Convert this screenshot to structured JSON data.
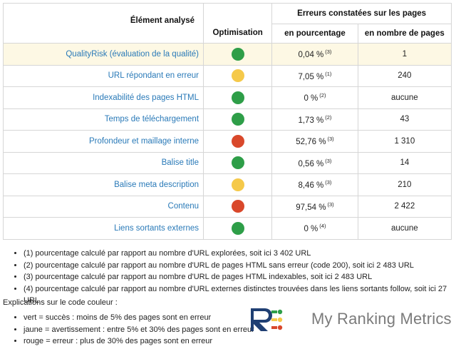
{
  "table": {
    "header_group": "Erreurs constatées sur les pages",
    "col_element": "Élément analysé",
    "col_optimisation": "Optimisation",
    "col_percent": "en pourcentage",
    "col_count": "en nombre de pages",
    "rows": [
      {
        "label": "QualityRisk (évaluation de la qualité)",
        "status": "green",
        "percent": "0,04 %",
        "note": "(3)",
        "count": "1"
      },
      {
        "label": "URL répondant en erreur",
        "status": "yellow",
        "percent": "7,05 %",
        "note": "(1)",
        "count": "240"
      },
      {
        "label": "Indexabilité des pages HTML",
        "status": "green",
        "percent": "0 %",
        "note": "(2)",
        "count": "aucune"
      },
      {
        "label": "Temps de téléchargement",
        "status": "green",
        "percent": "1,73 %",
        "note": "(2)",
        "count": "43"
      },
      {
        "label": "Profondeur et maillage interne",
        "status": "red",
        "percent": "52,76 %",
        "note": "(3)",
        "count": "1 310"
      },
      {
        "label": "Balise title",
        "status": "green",
        "percent": "0,56 %",
        "note": "(3)",
        "count": "14"
      },
      {
        "label": "Balise meta description",
        "status": "yellow",
        "percent": "8,46 %",
        "note": "(3)",
        "count": "210"
      },
      {
        "label": "Contenu",
        "status": "red",
        "percent": "97,54 %",
        "note": "(3)",
        "count": "2 422"
      },
      {
        "label": "Liens sortants externes",
        "status": "green",
        "percent": "0 %",
        "note": "(4)",
        "count": "aucune"
      }
    ]
  },
  "notes": [
    "(1) pourcentage calculé par rapport au nombre d'URL explorées, soit ici 3 402 URL",
    "(2) pourcentage calculé par rapport au nombre d'URL de pages HTML sans erreur (code 200), soit ici 2 483 URL",
    "(3) pourcentage calculé par rapport au nombre d'URL de pages HTML indexables, soit ici 2 483 URL",
    "(4) pourcentage calculé par rapport au nombre d'URL externes distinctes trouvées dans les liens sortants follow, soit ici 27 URL"
  ],
  "legend": {
    "title": "Explications sur le code couleur :",
    "items": [
      "vert = succès : moins de 5% des pages sont en erreur",
      "jaune = avertissement : entre 5% et 30% des pages sont en erreur",
      "rouge = erreur : plus de 30% des pages sont en erreur"
    ]
  },
  "brand": {
    "name": "My Ranking Metrics"
  },
  "colors": {
    "green": "#2e9e48",
    "yellow": "#f5c94a",
    "red": "#d9482b",
    "link": "#2a7ab8",
    "navy": "#1f3f73"
  }
}
